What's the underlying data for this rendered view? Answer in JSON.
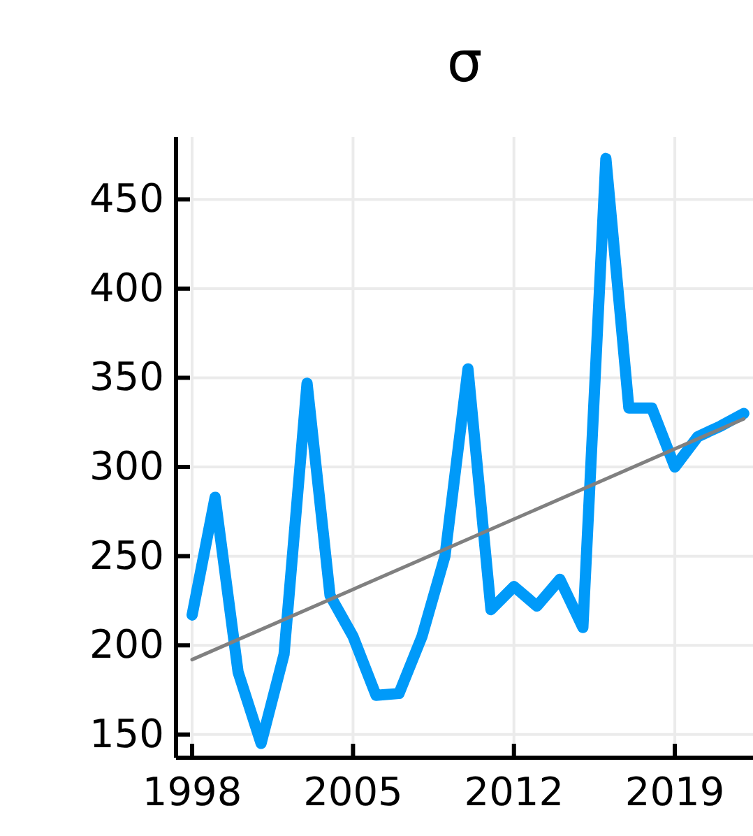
{
  "chart_data": {
    "type": "line",
    "title": "σ",
    "x": [
      1998,
      1999,
      2000,
      2001,
      2002,
      2003,
      2004,
      2005,
      2006,
      2007,
      2008,
      2009,
      2010,
      2011,
      2012,
      2013,
      2014,
      2015,
      2016,
      2017,
      2018,
      2019,
      2020,
      2021,
      2022
    ],
    "series": [
      {
        "color": "#009af9",
        "values": [
          217,
          283,
          185,
          145,
          195,
          347,
          228,
          205,
          172,
          173,
          205,
          250,
          355,
          220,
          233,
          222,
          237,
          210,
          473,
          333,
          333,
          300,
          317,
          323,
          330
        ]
      },
      {
        "type": "line",
        "color": "#808080",
        "x": [
          1998,
          2022
        ],
        "values": [
          192,
          327
        ]
      }
    ],
    "xlim": [
      1997.3,
      2022.4
    ],
    "ylim": [
      137,
      485
    ],
    "xticks": [
      1998,
      2005,
      2012,
      2019
    ],
    "yticks": [
      150,
      200,
      250,
      300,
      350,
      400,
      450
    ],
    "grid": true
  }
}
